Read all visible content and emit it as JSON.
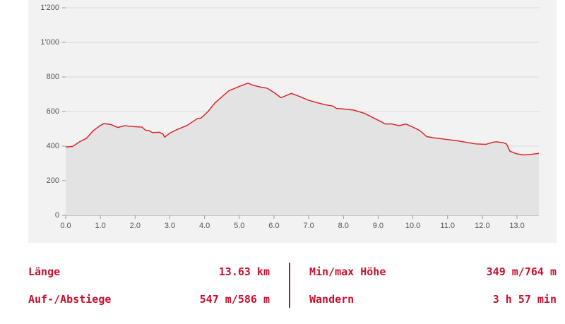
{
  "chart_data": {
    "type": "line",
    "x": [
      0,
      0.2,
      0.4,
      0.6,
      0.8,
      1.0,
      1.1,
      1.3,
      1.5,
      1.7,
      2.0,
      2.2,
      2.3,
      2.4,
      2.5,
      2.7,
      2.8,
      2.85,
      3.0,
      3.2,
      3.5,
      3.8,
      3.9,
      4.1,
      4.3,
      4.5,
      4.7,
      5.0,
      5.25,
      5.4,
      5.6,
      5.8,
      6.0,
      6.2,
      6.3,
      6.5,
      6.7,
      7.0,
      7.3,
      7.5,
      7.7,
      7.8,
      8.0,
      8.3,
      8.6,
      8.9,
      9.1,
      9.2,
      9.4,
      9.6,
      9.8,
      10.0,
      10.2,
      10.4,
      10.6,
      11.0,
      11.3,
      11.6,
      11.8,
      12.1,
      12.3,
      12.4,
      12.6,
      12.7,
      12.8,
      13.0,
      13.2,
      13.4,
      13.63
    ],
    "series": [
      {
        "color": "#d9262b",
        "values": [
          395,
          398,
          425,
          445,
          490,
          520,
          530,
          525,
          508,
          518,
          512,
          510,
          492,
          490,
          478,
          480,
          470,
          452,
          475,
          495,
          520,
          560,
          562,
          600,
          650,
          685,
          720,
          745,
          764,
          752,
          742,
          735,
          710,
          680,
          688,
          705,
          690,
          665,
          648,
          638,
          632,
          618,
          615,
          608,
          590,
          560,
          540,
          528,
          528,
          518,
          528,
          510,
          490,
          455,
          448,
          438,
          430,
          420,
          413,
          410,
          422,
          425,
          420,
          412,
          370,
          355,
          349,
          352,
          358
        ]
      }
    ],
    "xlim": [
      0,
      13.63
    ],
    "ylim": [
      0,
      1200
    ],
    "xticks": [
      {
        "value": 0,
        "label": "0.0"
      },
      {
        "value": 1,
        "label": "1.0"
      },
      {
        "value": 2,
        "label": "2.0"
      },
      {
        "value": 3,
        "label": "3.0"
      },
      {
        "value": 4,
        "label": "4.0"
      },
      {
        "value": 5,
        "label": "5.0"
      },
      {
        "value": 6,
        "label": "6.0"
      },
      {
        "value": 7,
        "label": "7.0"
      },
      {
        "value": 8,
        "label": "8.0"
      },
      {
        "value": 9,
        "label": "9.0"
      },
      {
        "value": 10,
        "label": "10.0"
      },
      {
        "value": 11,
        "label": "11.0"
      },
      {
        "value": 12,
        "label": "12.0"
      },
      {
        "value": 13,
        "label": "13.0"
      }
    ],
    "yticks": [
      0,
      200,
      400,
      600,
      800,
      {
        "value": 1000,
        "label": "1'000"
      },
      {
        "value": 1200,
        "label": "1'200"
      }
    ],
    "grid": true
  },
  "stats": {
    "rows": [
      [
        "Länge",
        "13.63 km",
        "Min/max Höhe",
        "349 m/764 m"
      ],
      [
        "Auf-/Abstiege",
        "547 m/586 m",
        "Wandern",
        "3 h 57 min"
      ]
    ]
  }
}
